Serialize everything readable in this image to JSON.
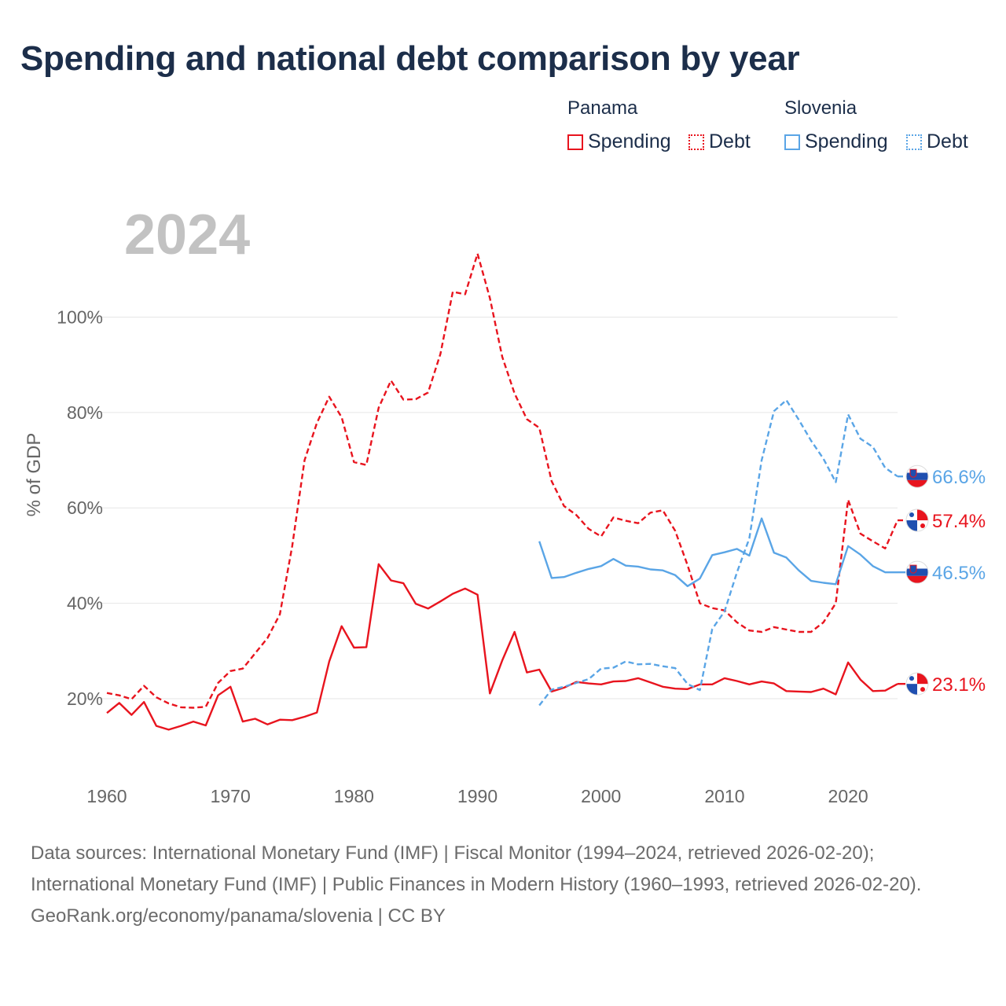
{
  "title": "Spending and national debt comparison by year",
  "legend": {
    "groups": [
      {
        "name": "Panama",
        "items": [
          {
            "label": "Spending",
            "style": "solid"
          },
          {
            "label": "Debt",
            "style": "dotted"
          }
        ],
        "color": "#e8141e"
      },
      {
        "name": "Slovenia",
        "items": [
          {
            "label": "Spending",
            "style": "solid"
          },
          {
            "label": "Debt",
            "style": "dotted"
          }
        ],
        "color": "#5aa5e6"
      }
    ]
  },
  "year_overlay": "2024",
  "footer": {
    "sources": "Data sources: International Monetary Fund (IMF) | Fiscal Monitor (1994–2024, retrieved 2026-02-20); International Monetary Fund (IMF) | Public Finances in Modern History (1960–1993, retrieved 2026-02-20).",
    "credit": "GeoRank.org/economy/panama/slovenia | CC BY"
  },
  "chart_data": {
    "type": "line",
    "title": "Spending and national debt comparison by year",
    "xlabel": "",
    "ylabel": "% of GDP",
    "xlim": [
      1960,
      2024
    ],
    "ylim": [
      5,
      122
    ],
    "xticks": [
      1960,
      1970,
      1980,
      1990,
      2000,
      2010,
      2020
    ],
    "yticks": [
      20,
      40,
      60,
      80,
      100
    ],
    "ytick_labels": [
      "20%",
      "40%",
      "60%",
      "80%",
      "100%"
    ],
    "grid": true,
    "series": [
      {
        "name": "Panama Debt",
        "color": "#e8141e",
        "dash": true,
        "end_label": "57.4%",
        "flag": "panama",
        "points": [
          [
            1960,
            21.2
          ],
          [
            1961,
            20.7
          ],
          [
            1962,
            19.9
          ],
          [
            1963,
            22.7
          ],
          [
            1964,
            20.3
          ],
          [
            1965,
            19.0
          ],
          [
            1966,
            18.2
          ],
          [
            1967,
            18.1
          ],
          [
            1968,
            18.3
          ],
          [
            1969,
            23.3
          ],
          [
            1970,
            25.8
          ],
          [
            1971,
            26.3
          ],
          [
            1972,
            29.5
          ],
          [
            1973,
            32.7
          ],
          [
            1974,
            37.7
          ],
          [
            1975,
            52.0
          ],
          [
            1976,
            70.0
          ],
          [
            1977,
            77.8
          ],
          [
            1978,
            83.3
          ],
          [
            1979,
            79.0
          ],
          [
            1980,
            69.6
          ],
          [
            1981,
            69.0
          ],
          [
            1982,
            81.0
          ],
          [
            1983,
            86.7
          ],
          [
            1984,
            82.7
          ],
          [
            1985,
            82.8
          ],
          [
            1986,
            84.2
          ],
          [
            1987,
            92.3
          ],
          [
            1988,
            105.3
          ],
          [
            1989,
            104.8
          ],
          [
            1990,
            113.3
          ],
          [
            1991,
            104.0
          ],
          [
            1992,
            91.7
          ],
          [
            1993,
            84.0
          ],
          [
            1994,
            78.6
          ],
          [
            1995,
            76.8
          ],
          [
            1996,
            65.6
          ],
          [
            1997,
            60.4
          ],
          [
            1998,
            58.5
          ],
          [
            1999,
            55.6
          ],
          [
            2000,
            54.0
          ],
          [
            2001,
            58.0
          ],
          [
            2002,
            57.3
          ],
          [
            2003,
            56.8
          ],
          [
            2004,
            59.0
          ],
          [
            2005,
            59.5
          ],
          [
            2006,
            55.2
          ],
          [
            2007,
            48.0
          ],
          [
            2008,
            40.0
          ],
          [
            2009,
            39.0
          ],
          [
            2010,
            38.5
          ],
          [
            2011,
            36.0
          ],
          [
            2012,
            34.3
          ],
          [
            2013,
            34.0
          ],
          [
            2014,
            35.0
          ],
          [
            2015,
            34.5
          ],
          [
            2016,
            34.0
          ],
          [
            2017,
            34.0
          ],
          [
            2018,
            36.0
          ],
          [
            2019,
            40.0
          ],
          [
            2020,
            61.7
          ],
          [
            2021,
            54.6
          ],
          [
            2022,
            53.0
          ],
          [
            2023,
            51.5
          ],
          [
            2024,
            57.4
          ]
        ]
      },
      {
        "name": "Panama Spending",
        "color": "#e8141e",
        "dash": false,
        "end_label": "23.1%",
        "flag": "panama",
        "points": [
          [
            1960,
            17.0
          ],
          [
            1961,
            19.1
          ],
          [
            1962,
            16.6
          ],
          [
            1963,
            19.3
          ],
          [
            1964,
            14.3
          ],
          [
            1965,
            13.5
          ],
          [
            1966,
            14.3
          ],
          [
            1967,
            15.2
          ],
          [
            1968,
            14.4
          ],
          [
            1969,
            20.7
          ],
          [
            1970,
            22.5
          ],
          [
            1971,
            15.2
          ],
          [
            1972,
            15.8
          ],
          [
            1973,
            14.6
          ],
          [
            1974,
            15.6
          ],
          [
            1975,
            15.5
          ],
          [
            1976,
            16.2
          ],
          [
            1977,
            17.1
          ],
          [
            1978,
            27.8
          ],
          [
            1979,
            35.2
          ],
          [
            1980,
            30.7
          ],
          [
            1981,
            30.8
          ],
          [
            1982,
            48.2
          ],
          [
            1983,
            44.8
          ],
          [
            1984,
            44.2
          ],
          [
            1985,
            39.9
          ],
          [
            1986,
            38.9
          ],
          [
            1987,
            40.4
          ],
          [
            1988,
            42.0
          ],
          [
            1989,
            43.1
          ],
          [
            1990,
            41.8
          ],
          [
            1991,
            21.1
          ],
          [
            1992,
            28.0
          ],
          [
            1993,
            34.0
          ],
          [
            1994,
            25.5
          ],
          [
            1995,
            26.1
          ],
          [
            1996,
            21.5
          ],
          [
            1997,
            22.3
          ],
          [
            1998,
            23.5
          ],
          [
            1999,
            23.2
          ],
          [
            2000,
            23.0
          ],
          [
            2001,
            23.6
          ],
          [
            2002,
            23.7
          ],
          [
            2003,
            24.3
          ],
          [
            2004,
            23.4
          ],
          [
            2005,
            22.5
          ],
          [
            2006,
            22.1
          ],
          [
            2007,
            22.0
          ],
          [
            2008,
            23.0
          ],
          [
            2009,
            23.0
          ],
          [
            2010,
            24.3
          ],
          [
            2011,
            23.7
          ],
          [
            2012,
            23.0
          ],
          [
            2013,
            23.6
          ],
          [
            2014,
            23.2
          ],
          [
            2015,
            21.6
          ],
          [
            2016,
            21.5
          ],
          [
            2017,
            21.4
          ],
          [
            2018,
            22.1
          ],
          [
            2019,
            20.9
          ],
          [
            2020,
            27.6
          ],
          [
            2021,
            24.0
          ],
          [
            2022,
            21.6
          ],
          [
            2023,
            21.7
          ],
          [
            2024,
            23.1
          ]
        ]
      },
      {
        "name": "Slovenia Debt",
        "color": "#5aa5e6",
        "dash": true,
        "end_label": "66.6%",
        "flag": "slovenia",
        "points": [
          [
            1995,
            18.6
          ],
          [
            1996,
            21.9
          ],
          [
            1997,
            22.5
          ],
          [
            1998,
            23.3
          ],
          [
            1999,
            24.1
          ],
          [
            2000,
            26.3
          ],
          [
            2001,
            26.5
          ],
          [
            2002,
            27.8
          ],
          [
            2003,
            27.2
          ],
          [
            2004,
            27.3
          ],
          [
            2005,
            26.8
          ],
          [
            2006,
            26.4
          ],
          [
            2007,
            23.1
          ],
          [
            2008,
            21.8
          ],
          [
            2009,
            34.6
          ],
          [
            2010,
            38.3
          ],
          [
            2011,
            46.5
          ],
          [
            2012,
            53.6
          ],
          [
            2013,
            70.0
          ],
          [
            2014,
            80.3
          ],
          [
            2015,
            82.6
          ],
          [
            2016,
            78.5
          ],
          [
            2017,
            74.1
          ],
          [
            2018,
            70.3
          ],
          [
            2019,
            65.4
          ],
          [
            2020,
            79.6
          ],
          [
            2021,
            74.5
          ],
          [
            2022,
            72.8
          ],
          [
            2023,
            68.4
          ],
          [
            2024,
            66.6
          ]
        ]
      },
      {
        "name": "Slovenia Spending",
        "color": "#5aa5e6",
        "dash": false,
        "end_label": "46.5%",
        "flag": "slovenia",
        "points": [
          [
            1995,
            53.0
          ],
          [
            1996,
            45.3
          ],
          [
            1997,
            45.5
          ],
          [
            1998,
            46.4
          ],
          [
            1999,
            47.2
          ],
          [
            2000,
            47.8
          ],
          [
            2001,
            49.3
          ],
          [
            2002,
            47.9
          ],
          [
            2003,
            47.7
          ],
          [
            2004,
            47.1
          ],
          [
            2005,
            46.9
          ],
          [
            2006,
            45.9
          ],
          [
            2007,
            43.6
          ],
          [
            2008,
            45.2
          ],
          [
            2009,
            50.1
          ],
          [
            2010,
            50.7
          ],
          [
            2011,
            51.4
          ],
          [
            2012,
            50.0
          ],
          [
            2013,
            57.8
          ],
          [
            2014,
            50.6
          ],
          [
            2015,
            49.6
          ],
          [
            2016,
            46.9
          ],
          [
            2017,
            44.7
          ],
          [
            2018,
            44.3
          ],
          [
            2019,
            44.0
          ],
          [
            2020,
            52.0
          ],
          [
            2021,
            50.2
          ],
          [
            2022,
            47.8
          ],
          [
            2023,
            46.5
          ],
          [
            2024,
            46.5
          ]
        ]
      }
    ]
  }
}
